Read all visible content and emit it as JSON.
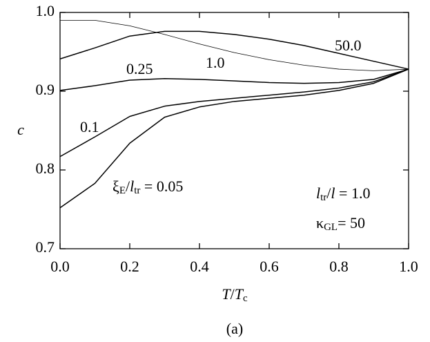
{
  "chart_data": {
    "type": "line",
    "x_label": [
      {
        "text": "T",
        "italic": true
      },
      {
        "text": "/"
      },
      {
        "text": "T",
        "italic": true
      },
      {
        "text": "c",
        "sub": true
      }
    ],
    "y_label": [
      {
        "text": "c",
        "italic": true
      }
    ],
    "caption": "(a)",
    "x": [
      0.0,
      0.1,
      0.2,
      0.3,
      0.4,
      0.5,
      0.6,
      0.7,
      0.8,
      0.9,
      1.0
    ],
    "series": [
      {
        "name": [
          {
            "text": "50.0"
          }
        ],
        "color": "#000000",
        "values": [
          0.941,
          0.955,
          0.97,
          0.976,
          0.976,
          0.972,
          0.966,
          0.958,
          0.948,
          0.938,
          0.928
        ]
      },
      {
        "name": [
          {
            "text": "1.0"
          }
        ],
        "color": "#000000",
        "values": [
          0.99,
          0.99,
          0.983,
          0.972,
          0.96,
          0.949,
          0.94,
          0.933,
          0.928,
          0.926,
          0.928
        ]
      },
      {
        "name": [
          {
            "text": "0.25"
          }
        ],
        "color": "#000000",
        "values": [
          0.901,
          0.907,
          0.914,
          0.916,
          0.915,
          0.913,
          0.911,
          0.91,
          0.911,
          0.915,
          0.928
        ]
      },
      {
        "name": [
          {
            "text": "0.1"
          }
        ],
        "color": "#000000",
        "values": [
          0.817,
          0.842,
          0.868,
          0.881,
          0.887,
          0.891,
          0.895,
          0.899,
          0.904,
          0.912,
          0.928
        ]
      },
      {
        "name": [
          {
            "text": "ξ"
          },
          {
            "text": "E",
            "sub": true
          },
          {
            "text": "/"
          },
          {
            "text": "l",
            "italic": true
          },
          {
            "text": "tr",
            "sub": true
          },
          {
            "text": " = 0.05"
          }
        ],
        "color": "#000000",
        "values": [
          0.752,
          0.783,
          0.834,
          0.867,
          0.88,
          0.887,
          0.891,
          0.895,
          0.901,
          0.91,
          0.928
        ]
      }
    ],
    "annotations": [
      [
        {
          "text": "l",
          "italic": true
        },
        {
          "text": "tr",
          "sub": true
        },
        {
          "text": "/"
        },
        {
          "text": "l",
          "italic": true
        },
        {
          "text": " = 1.0"
        }
      ],
      [
        {
          "text": "κ"
        },
        {
          "text": "GL",
          "sub": true
        },
        {
          "text": "= 50"
        }
      ]
    ],
    "xlim": [
      0.0,
      1.0
    ],
    "ylim": [
      0.7,
      1.0
    ],
    "xticks": [
      {
        "value": 0.0,
        "label": "0.0"
      },
      {
        "value": 0.2,
        "label": "0.2"
      },
      {
        "value": 0.4,
        "label": "0.4"
      },
      {
        "value": 0.6,
        "label": "0.6"
      },
      {
        "value": 0.8,
        "label": "0.8"
      },
      {
        "value": 1.0,
        "label": "1.0"
      }
    ],
    "yticks": [
      {
        "value": 0.7,
        "label": "0.7"
      },
      {
        "value": 0.8,
        "label": "0.8"
      },
      {
        "value": 0.9,
        "label": "0.9"
      },
      {
        "value": 1.0,
        "label": "1.0"
      }
    ],
    "grid": false
  }
}
